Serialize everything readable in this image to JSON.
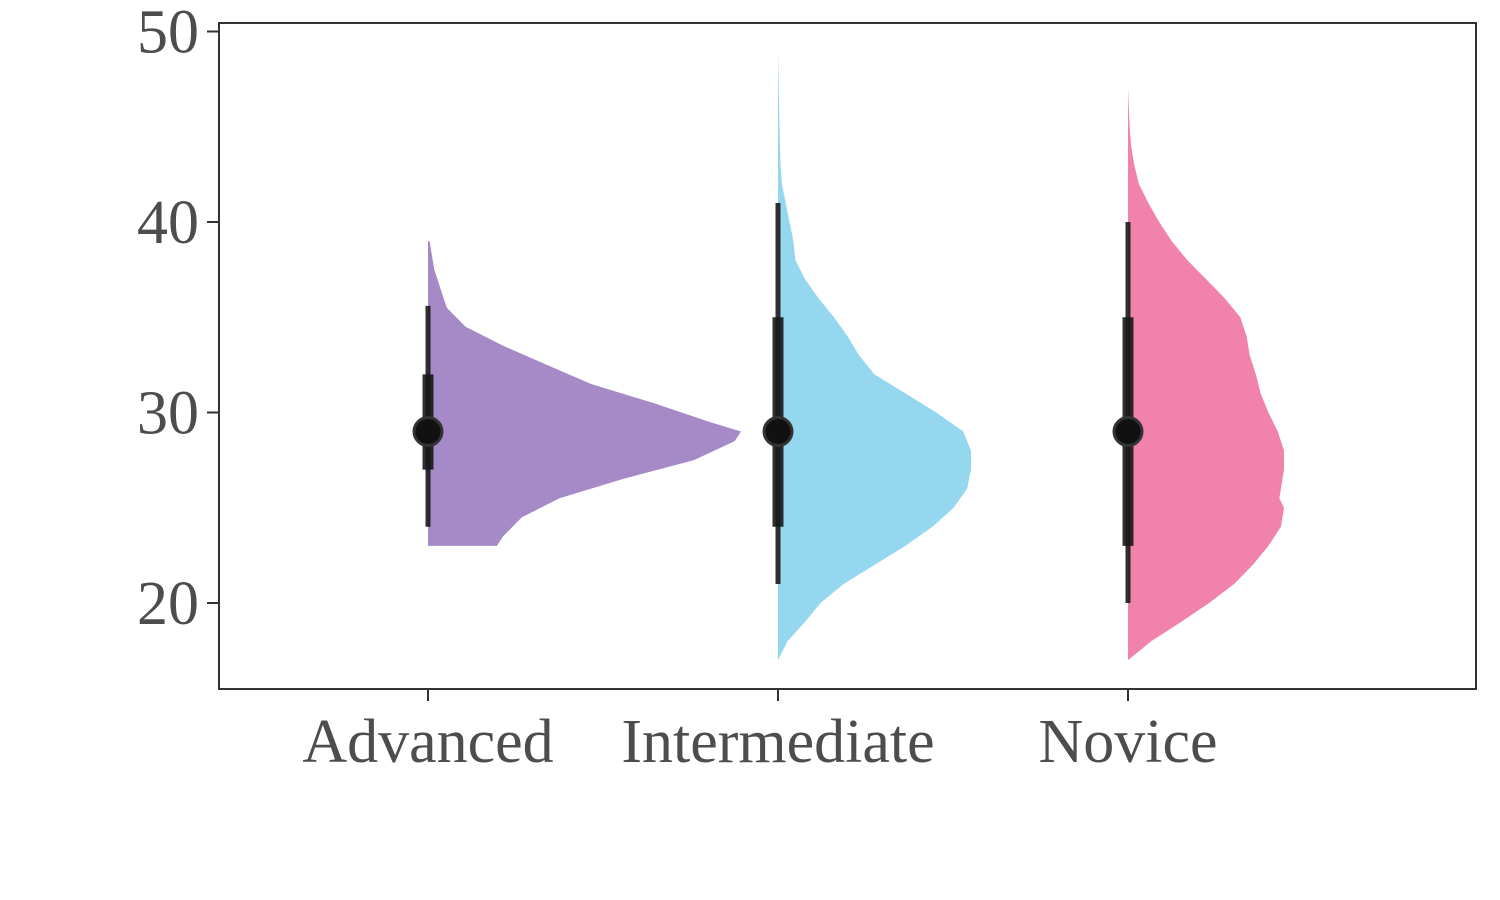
{
  "chart_data": {
    "type": "half-violin with point-interval",
    "title": "",
    "xlabel": "",
    "ylabel": "",
    "ylim": [
      15.5,
      51
    ],
    "yticks": [
      20,
      30,
      40,
      50
    ],
    "grid": false,
    "categories": [
      "Advanced",
      "Intermediate",
      "Novice"
    ],
    "series": [
      {
        "category": "Advanced",
        "color": "#a58ac7",
        "median": 29,
        "interval_66": [
          27,
          32
        ],
        "interval_95": [
          24,
          35.6
        ],
        "range": [
          23,
          39
        ],
        "density_profile": [
          [
            23,
            0.22
          ],
          [
            23.5,
            0.24
          ],
          [
            24.5,
            0.3
          ],
          [
            25.5,
            0.42
          ],
          [
            26.5,
            0.62
          ],
          [
            27.5,
            0.85
          ],
          [
            28.5,
            0.98
          ],
          [
            29,
            1.0
          ],
          [
            29.5,
            0.9
          ],
          [
            30.5,
            0.72
          ],
          [
            31.5,
            0.52
          ],
          [
            32.5,
            0.38
          ],
          [
            33.5,
            0.24
          ],
          [
            34.5,
            0.12
          ],
          [
            35.5,
            0.06
          ],
          [
            36.5,
            0.04
          ],
          [
            37.5,
            0.02
          ],
          [
            38.5,
            0.01
          ],
          [
            39,
            0.005
          ]
        ]
      },
      {
        "category": "Intermediate",
        "color": "#96d7f0",
        "median": 29,
        "interval_66": [
          24,
          35
        ],
        "interval_95": [
          21,
          41
        ],
        "range": [
          17,
          49
        ],
        "density_profile": [
          [
            17,
            0.0
          ],
          [
            18,
            0.05
          ],
          [
            19,
            0.14
          ],
          [
            20,
            0.22
          ],
          [
            21,
            0.34
          ],
          [
            22,
            0.5
          ],
          [
            23,
            0.66
          ],
          [
            24,
            0.8
          ],
          [
            25,
            0.91
          ],
          [
            26,
            0.98
          ],
          [
            27,
            1.0
          ],
          [
            28,
            1.0
          ],
          [
            29,
            0.96
          ],
          [
            30,
            0.82
          ],
          [
            31,
            0.66
          ],
          [
            32,
            0.5
          ],
          [
            33,
            0.42
          ],
          [
            34,
            0.36
          ],
          [
            35,
            0.29
          ],
          [
            36,
            0.21
          ],
          [
            37,
            0.14
          ],
          [
            38,
            0.09
          ],
          [
            39,
            0.08
          ],
          [
            40,
            0.06
          ],
          [
            41,
            0.04
          ],
          [
            42,
            0.02
          ],
          [
            43,
            0.013
          ],
          [
            45,
            0.008
          ],
          [
            47,
            0.004
          ],
          [
            49,
            0.0
          ]
        ]
      },
      {
        "category": "Novice",
        "color": "#f082ab",
        "median": 29,
        "interval_66": [
          23,
          35
        ],
        "interval_95": [
          20,
          40
        ],
        "range": [
          17,
          47
        ],
        "density_profile": [
          [
            17,
            0.0
          ],
          [
            18,
            0.15
          ],
          [
            19,
            0.34
          ],
          [
            20,
            0.52
          ],
          [
            21,
            0.68
          ],
          [
            22,
            0.8
          ],
          [
            23,
            0.9
          ],
          [
            24,
            0.98
          ],
          [
            25,
            1.0
          ],
          [
            25.5,
            0.97
          ],
          [
            26,
            0.98
          ],
          [
            27,
            1.0
          ],
          [
            28,
            1.0
          ],
          [
            29,
            0.96
          ],
          [
            30,
            0.9
          ],
          [
            31,
            0.85
          ],
          [
            32,
            0.82
          ],
          [
            33,
            0.78
          ],
          [
            34,
            0.76
          ],
          [
            35,
            0.72
          ],
          [
            36,
            0.62
          ],
          [
            37,
            0.5
          ],
          [
            38,
            0.38
          ],
          [
            39,
            0.28
          ],
          [
            40,
            0.2
          ],
          [
            41,
            0.13
          ],
          [
            42,
            0.07
          ],
          [
            43,
            0.04
          ],
          [
            44,
            0.02
          ],
          [
            45,
            0.01
          ],
          [
            47,
            0.0
          ]
        ]
      }
    ]
  }
}
